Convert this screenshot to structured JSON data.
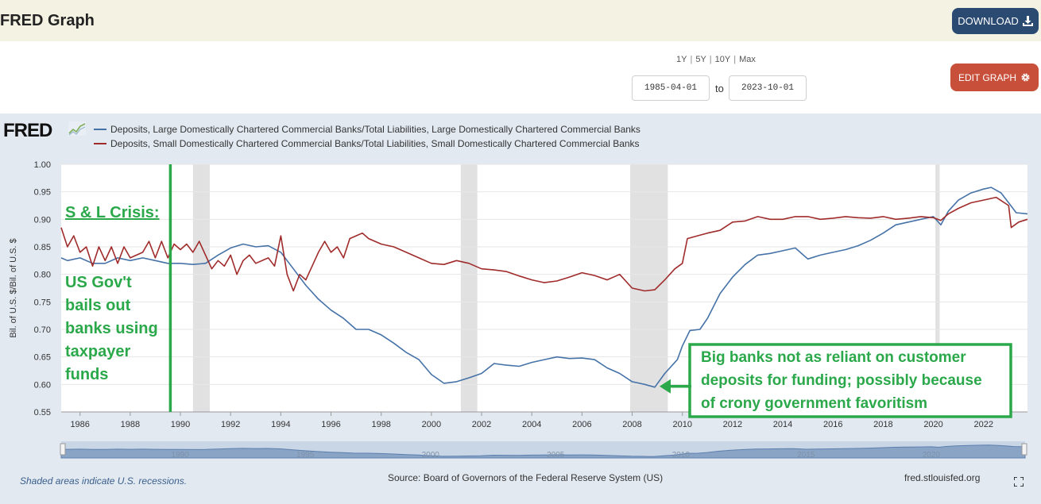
{
  "header": {
    "title": "FRED Graph",
    "download_label": "DOWNLOAD",
    "download_icon": "download-icon"
  },
  "controls": {
    "range_links": [
      "1Y",
      "5Y",
      "10Y",
      "Max"
    ],
    "start_date": "1985-04-01",
    "to_label": "to",
    "end_date": "2023-10-01",
    "edit_label": "EDIT GRAPH",
    "edit_icon": "gear-icon"
  },
  "logo": {
    "text": "FRED"
  },
  "footer": {
    "note": "Shaded areas indicate U.S. recessions.",
    "source": "Source: Board of Governors of the Federal Reserve System (US)",
    "url": "fred.stlouisfed.org"
  },
  "annotations": {
    "crisis_title": "S & L Crisis:",
    "crisis_lines": [
      "US Gov't",
      "bails out",
      "banks using",
      "taxpayer",
      "funds"
    ],
    "crisis_marker_year": 1989.6,
    "box_lines": [
      "Big banks not as reliant on customer",
      "deposits for funding; possibly because",
      "of crony government favoritism"
    ],
    "arrow_target": [
      2008.9,
      0.595
    ],
    "color": "#2aa84a"
  },
  "navigator": {
    "labels": [
      "1990",
      "1995",
      "2000",
      "2005",
      "2010",
      "2015",
      "2020"
    ]
  },
  "chart_data": {
    "type": "line",
    "ylabel": "Bil. of U.S. $/Bil. of U.S. $",
    "xlim": [
      1985.25,
      2023.75
    ],
    "ylim": [
      0.55,
      1.0
    ],
    "y_ticks": [
      "0.55",
      "0.60",
      "0.65",
      "0.70",
      "0.75",
      "0.80",
      "0.85",
      "0.90",
      "0.95",
      "1.00"
    ],
    "x_ticks": [
      "1986",
      "1988",
      "1990",
      "1992",
      "1994",
      "1996",
      "1998",
      "2000",
      "2002",
      "2004",
      "2006",
      "2008",
      "2010",
      "2012",
      "2014",
      "2016",
      "2018",
      "2020",
      "2022"
    ],
    "recessions": [
      [
        1990.5,
        1991.17
      ],
      [
        2001.17,
        2001.83
      ],
      [
        2007.92,
        2009.42
      ],
      [
        2020.08,
        2020.25
      ]
    ],
    "series": [
      {
        "name": "Deposits, Large Domestically Chartered Commercial Banks/Total Liabilities, Large Domestically Chartered Commercial Banks",
        "color": "#4572a7",
        "points": [
          [
            1985.25,
            0.83
          ],
          [
            1985.5,
            0.825
          ],
          [
            1986,
            0.83
          ],
          [
            1986.5,
            0.82
          ],
          [
            1987,
            0.82
          ],
          [
            1987.5,
            0.83
          ],
          [
            1988,
            0.825
          ],
          [
            1988.5,
            0.83
          ],
          [
            1989,
            0.825
          ],
          [
            1989.5,
            0.82
          ],
          [
            1990,
            0.82
          ],
          [
            1990.5,
            0.818
          ],
          [
            1991,
            0.82
          ],
          [
            1991.5,
            0.835
          ],
          [
            1992,
            0.848
          ],
          [
            1992.5,
            0.855
          ],
          [
            1993,
            0.85
          ],
          [
            1993.5,
            0.852
          ],
          [
            1994,
            0.84
          ],
          [
            1994.5,
            0.81
          ],
          [
            1995,
            0.78
          ],
          [
            1995.5,
            0.755
          ],
          [
            1996,
            0.735
          ],
          [
            1996.5,
            0.72
          ],
          [
            1997,
            0.7
          ],
          [
            1997.5,
            0.7
          ],
          [
            1998,
            0.69
          ],
          [
            1998.5,
            0.675
          ],
          [
            1999,
            0.658
          ],
          [
            1999.5,
            0.645
          ],
          [
            2000,
            0.618
          ],
          [
            2000.5,
            0.602
          ],
          [
            2001,
            0.605
          ],
          [
            2001.5,
            0.612
          ],
          [
            2002,
            0.62
          ],
          [
            2002.5,
            0.638
          ],
          [
            2003,
            0.635
          ],
          [
            2003.5,
            0.633
          ],
          [
            2004,
            0.64
          ],
          [
            2004.5,
            0.645
          ],
          [
            2005,
            0.65
          ],
          [
            2005.5,
            0.647
          ],
          [
            2006,
            0.648
          ],
          [
            2006.5,
            0.645
          ],
          [
            2007,
            0.63
          ],
          [
            2007.5,
            0.62
          ],
          [
            2008,
            0.605
          ],
          [
            2008.5,
            0.6
          ],
          [
            2008.9,
            0.595
          ],
          [
            2009.3,
            0.62
          ],
          [
            2009.8,
            0.645
          ],
          [
            2010,
            0.67
          ],
          [
            2010.3,
            0.698
          ],
          [
            2010.7,
            0.7
          ],
          [
            2011,
            0.72
          ],
          [
            2011.5,
            0.765
          ],
          [
            2012,
            0.795
          ],
          [
            2012.5,
            0.818
          ],
          [
            2013,
            0.835
          ],
          [
            2013.5,
            0.838
          ],
          [
            2014,
            0.843
          ],
          [
            2014.5,
            0.848
          ],
          [
            2015,
            0.828
          ],
          [
            2015.5,
            0.835
          ],
          [
            2016,
            0.84
          ],
          [
            2016.5,
            0.845
          ],
          [
            2017,
            0.852
          ],
          [
            2017.5,
            0.862
          ],
          [
            2018,
            0.875
          ],
          [
            2018.5,
            0.89
          ],
          [
            2019,
            0.895
          ],
          [
            2019.5,
            0.9
          ],
          [
            2020,
            0.905
          ],
          [
            2020.3,
            0.89
          ],
          [
            2020.6,
            0.915
          ],
          [
            2021,
            0.935
          ],
          [
            2021.5,
            0.948
          ],
          [
            2022,
            0.955
          ],
          [
            2022.3,
            0.958
          ],
          [
            2022.7,
            0.948
          ],
          [
            2023,
            0.93
          ],
          [
            2023.3,
            0.912
          ],
          [
            2023.75,
            0.91
          ]
        ]
      },
      {
        "name": "Deposits, Small Domestically Chartered Commercial Banks/Total Liabilities, Small Domestically Chartered Commercial Banks",
        "color": "#a02b2b",
        "points": [
          [
            1985.25,
            0.885
          ],
          [
            1985.5,
            0.85
          ],
          [
            1985.75,
            0.87
          ],
          [
            1986,
            0.84
          ],
          [
            1986.25,
            0.85
          ],
          [
            1986.5,
            0.815
          ],
          [
            1986.75,
            0.85
          ],
          [
            1987,
            0.825
          ],
          [
            1987.25,
            0.85
          ],
          [
            1987.5,
            0.82
          ],
          [
            1987.75,
            0.85
          ],
          [
            1988,
            0.83
          ],
          [
            1988.5,
            0.84
          ],
          [
            1988.75,
            0.86
          ],
          [
            1989,
            0.83
          ],
          [
            1989.25,
            0.86
          ],
          [
            1989.5,
            0.83
          ],
          [
            1989.75,
            0.855
          ],
          [
            1990,
            0.845
          ],
          [
            1990.25,
            0.855
          ],
          [
            1990.5,
            0.84
          ],
          [
            1990.75,
            0.86
          ],
          [
            1991,
            0.835
          ],
          [
            1991.25,
            0.81
          ],
          [
            1991.5,
            0.825
          ],
          [
            1991.75,
            0.815
          ],
          [
            1992,
            0.835
          ],
          [
            1992.25,
            0.8
          ],
          [
            1992.5,
            0.825
          ],
          [
            1992.75,
            0.835
          ],
          [
            1993,
            0.82
          ],
          [
            1993.5,
            0.83
          ],
          [
            1993.75,
            0.815
          ],
          [
            1994,
            0.87
          ],
          [
            1994.25,
            0.8
          ],
          [
            1994.5,
            0.77
          ],
          [
            1994.75,
            0.8
          ],
          [
            1995,
            0.79
          ],
          [
            1995.5,
            0.84
          ],
          [
            1995.75,
            0.86
          ],
          [
            1996,
            0.84
          ],
          [
            1996.25,
            0.85
          ],
          [
            1996.5,
            0.83
          ],
          [
            1996.75,
            0.865
          ],
          [
            1997,
            0.87
          ],
          [
            1997.25,
            0.875
          ],
          [
            1997.5,
            0.865
          ],
          [
            1998,
            0.855
          ],
          [
            1998.5,
            0.85
          ],
          [
            1999,
            0.84
          ],
          [
            1999.5,
            0.83
          ],
          [
            2000,
            0.82
          ],
          [
            2000.5,
            0.818
          ],
          [
            2001,
            0.825
          ],
          [
            2001.5,
            0.82
          ],
          [
            2002,
            0.81
          ],
          [
            2002.5,
            0.808
          ],
          [
            2003,
            0.805
          ],
          [
            2003.5,
            0.797
          ],
          [
            2004,
            0.79
          ],
          [
            2004.5,
            0.785
          ],
          [
            2005,
            0.788
          ],
          [
            2005.5,
            0.795
          ],
          [
            2006,
            0.803
          ],
          [
            2006.5,
            0.798
          ],
          [
            2007,
            0.79
          ],
          [
            2007.5,
            0.8
          ],
          [
            2008,
            0.775
          ],
          [
            2008.5,
            0.77
          ],
          [
            2008.9,
            0.772
          ],
          [
            2009.3,
            0.79
          ],
          [
            2009.7,
            0.81
          ],
          [
            2010,
            0.82
          ],
          [
            2010.2,
            0.865
          ],
          [
            2010.6,
            0.87
          ],
          [
            2011,
            0.875
          ],
          [
            2011.5,
            0.88
          ],
          [
            2012,
            0.895
          ],
          [
            2012.5,
            0.897
          ],
          [
            2013,
            0.905
          ],
          [
            2013.5,
            0.9
          ],
          [
            2014,
            0.9
          ],
          [
            2014.5,
            0.905
          ],
          [
            2015,
            0.905
          ],
          [
            2015.5,
            0.9
          ],
          [
            2016,
            0.902
          ],
          [
            2016.5,
            0.905
          ],
          [
            2017,
            0.903
          ],
          [
            2017.5,
            0.902
          ],
          [
            2018,
            0.905
          ],
          [
            2018.5,
            0.9
          ],
          [
            2019,
            0.902
          ],
          [
            2019.5,
            0.905
          ],
          [
            2020,
            0.903
          ],
          [
            2020.3,
            0.898
          ],
          [
            2020.6,
            0.91
          ],
          [
            2021,
            0.92
          ],
          [
            2021.5,
            0.93
          ],
          [
            2022,
            0.935
          ],
          [
            2022.5,
            0.94
          ],
          [
            2023,
            0.925
          ],
          [
            2023.1,
            0.885
          ],
          [
            2023.4,
            0.895
          ],
          [
            2023.75,
            0.9
          ]
        ]
      }
    ]
  }
}
